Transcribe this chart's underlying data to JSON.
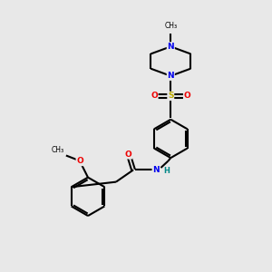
{
  "background_color": "#e8e8e8",
  "bond_color": "#000000",
  "atom_colors": {
    "N": "#0000ee",
    "O": "#ee0000",
    "S": "#bbaa00",
    "NH": "#008888",
    "C": "#000000"
  },
  "figsize": [
    3.0,
    3.0
  ],
  "dpi": 100,
  "xlim": [
    0,
    10
  ],
  "ylim": [
    0,
    10
  ]
}
